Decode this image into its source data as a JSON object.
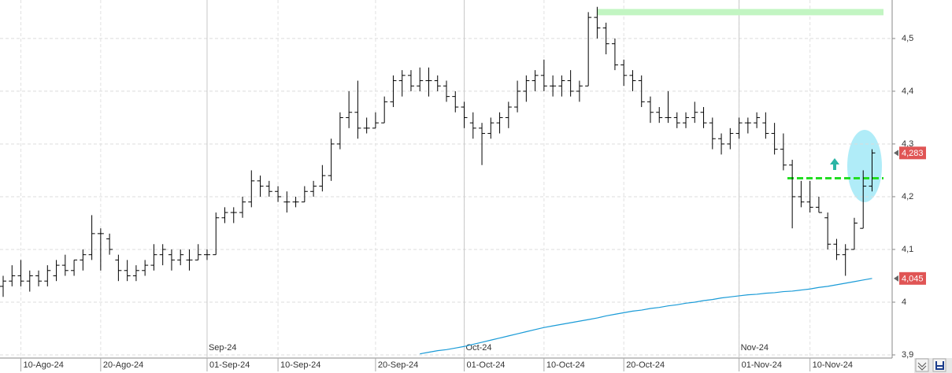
{
  "chart_data": {
    "type": "ohlc",
    "categories": [
      null,
      null,
      "10-Ago-24",
      null,
      null,
      null,
      null,
      null,
      null,
      null,
      null,
      "20-Ago-24",
      null,
      null,
      null,
      null,
      null,
      null,
      null,
      null,
      null,
      null,
      null,
      "01-Sep-24",
      null,
      null,
      null,
      null,
      null,
      null,
      null,
      "10-Sep-24",
      null,
      null,
      null,
      null,
      null,
      null,
      null,
      null,
      null,
      null,
      "20-Sep-24",
      null,
      null,
      null,
      null,
      null,
      null,
      null,
      null,
      null,
      "01-Oct-24",
      null,
      null,
      null,
      null,
      null,
      null,
      null,
      null,
      "10-Oct-24",
      null,
      null,
      null,
      null,
      null,
      null,
      null,
      null,
      "20-Oct-24",
      null,
      null,
      null,
      null,
      null,
      null,
      null,
      null,
      null,
      null,
      null,
      null,
      "01-Nov-24",
      null,
      null,
      null,
      null,
      null,
      null,
      null,
      "10-Nov-24",
      null,
      null,
      null,
      null,
      null,
      null,
      null
    ],
    "months": [
      null,
      null,
      null,
      null,
      null,
      null,
      null,
      null,
      null,
      null,
      null,
      null,
      null,
      null,
      null,
      null,
      null,
      null,
      null,
      null,
      null,
      null,
      null,
      "Sep-24",
      null,
      null,
      null,
      null,
      null,
      null,
      null,
      null,
      null,
      null,
      null,
      null,
      null,
      null,
      null,
      null,
      null,
      null,
      null,
      null,
      null,
      null,
      null,
      null,
      null,
      null,
      null,
      null,
      "Oct-24",
      null,
      null,
      null,
      null,
      null,
      null,
      null,
      null,
      null,
      null,
      null,
      null,
      null,
      null,
      null,
      null,
      null,
      null,
      null,
      null,
      null,
      null,
      null,
      null,
      null,
      null,
      null,
      null,
      null,
      null,
      "Nov-24",
      null,
      null,
      null,
      null,
      null,
      null,
      null,
      null,
      null,
      null,
      null,
      null,
      null,
      null,
      null
    ],
    "open": [
      4.03,
      4.04,
      4.05,
      4.04,
      4.05,
      4.04,
      4.05,
      4.07,
      4.06,
      4.08,
      4.09,
      4.13,
      4.12,
      4.08,
      4.06,
      4.05,
      4.06,
      4.07,
      4.09,
      4.09,
      4.08,
      4.08,
      4.08,
      4.09,
      4.09,
      4.16,
      4.17,
      4.17,
      4.19,
      4.23,
      4.22,
      4.21,
      4.19,
      4.19,
      4.19,
      4.21,
      4.22,
      4.24,
      4.3,
      4.35,
      4.36,
      4.33,
      4.33,
      4.34,
      4.38,
      4.42,
      4.43,
      4.41,
      4.42,
      4.42,
      4.41,
      4.39,
      4.37,
      4.34,
      4.33,
      4.32,
      4.34,
      4.35,
      4.37,
      4.4,
      4.42,
      4.43,
      4.41,
      4.41,
      4.42,
      4.4,
      4.41,
      4.54,
      4.52,
      4.49,
      4.45,
      4.43,
      4.42,
      4.38,
      4.36,
      4.35,
      4.35,
      4.34,
      4.35,
      4.36,
      4.34,
      4.31,
      4.3,
      4.32,
      4.34,
      4.34,
      4.34,
      4.32,
      4.29,
      4.26,
      4.2,
      4.19,
      4.18,
      4.16,
      4.11,
      4.09,
      4.1,
      4.14,
      4.22
    ],
    "high": [
      4.05,
      4.07,
      4.08,
      4.06,
      4.06,
      4.07,
      4.08,
      4.09,
      4.08,
      4.1,
      4.165,
      4.14,
      4.13,
      4.09,
      4.08,
      4.07,
      4.08,
      4.11,
      4.11,
      4.1,
      4.1,
      4.1,
      4.11,
      4.1,
      4.17,
      4.18,
      4.18,
      4.2,
      4.25,
      4.24,
      4.23,
      4.22,
      4.21,
      4.2,
      4.22,
      4.23,
      4.26,
      4.31,
      4.36,
      4.4,
      4.42,
      4.35,
      4.36,
      4.39,
      4.43,
      4.44,
      4.44,
      4.445,
      4.445,
      4.43,
      4.42,
      4.4,
      4.38,
      4.36,
      4.34,
      4.35,
      4.36,
      4.38,
      4.42,
      4.43,
      4.44,
      4.46,
      4.43,
      4.43,
      4.44,
      4.42,
      4.55,
      4.56,
      4.53,
      4.5,
      4.46,
      4.44,
      4.43,
      4.39,
      4.37,
      4.4,
      4.36,
      4.36,
      4.38,
      4.37,
      4.35,
      4.32,
      4.33,
      4.35,
      4.35,
      4.36,
      4.36,
      4.34,
      4.32,
      4.27,
      4.23,
      4.23,
      4.2,
      4.17,
      4.12,
      4.11,
      4.16,
      4.25,
      4.29
    ],
    "low": [
      4.01,
      4.03,
      4.03,
      4.02,
      4.03,
      4.03,
      4.04,
      4.05,
      4.05,
      4.06,
      4.08,
      4.06,
      4.09,
      4.04,
      4.04,
      4.04,
      4.05,
      4.06,
      4.07,
      4.06,
      4.07,
      4.06,
      4.08,
      4.08,
      4.09,
      4.15,
      4.15,
      4.16,
      4.18,
      4.2,
      4.2,
      4.19,
      4.17,
      4.18,
      4.19,
      4.2,
      4.21,
      4.23,
      4.29,
      4.33,
      4.31,
      4.32,
      4.33,
      4.34,
      4.37,
      4.39,
      4.4,
      4.4,
      4.39,
      4.4,
      4.38,
      4.36,
      4.33,
      4.31,
      4.26,
      4.31,
      4.32,
      4.33,
      4.36,
      4.38,
      4.4,
      4.4,
      4.39,
      4.39,
      4.39,
      4.38,
      4.41,
      4.5,
      4.47,
      4.44,
      4.41,
      4.4,
      4.37,
      4.34,
      4.34,
      4.34,
      4.33,
      4.33,
      4.34,
      4.33,
      4.29,
      4.28,
      4.29,
      4.31,
      4.32,
      4.33,
      4.31,
      4.28,
      4.25,
      4.14,
      4.18,
      4.17,
      4.17,
      4.1,
      4.08,
      4.05,
      4.1,
      4.14,
      4.21
    ],
    "close": [
      4.04,
      4.05,
      4.04,
      4.05,
      4.04,
      4.06,
      4.07,
      4.06,
      4.08,
      4.09,
      4.13,
      4.13,
      4.1,
      4.06,
      4.05,
      4.06,
      4.07,
      4.09,
      4.1,
      4.08,
      4.09,
      4.08,
      4.09,
      4.09,
      4.16,
      4.17,
      4.17,
      4.19,
      4.23,
      4.22,
      4.21,
      4.2,
      4.19,
      4.19,
      4.21,
      4.22,
      4.24,
      4.3,
      4.35,
      4.36,
      4.33,
      4.33,
      4.34,
      4.38,
      4.42,
      4.43,
      4.41,
      4.42,
      4.42,
      4.41,
      4.39,
      4.37,
      4.35,
      4.33,
      4.32,
      4.34,
      4.35,
      4.37,
      4.4,
      4.42,
      4.43,
      4.41,
      4.41,
      4.42,
      4.4,
      4.41,
      4.54,
      4.52,
      4.49,
      4.45,
      4.43,
      4.42,
      4.38,
      4.36,
      4.35,
      4.35,
      4.34,
      4.35,
      4.36,
      4.34,
      4.31,
      4.3,
      4.32,
      4.34,
      4.34,
      4.35,
      4.32,
      4.29,
      4.26,
      4.2,
      4.19,
      4.18,
      4.17,
      4.11,
      4.09,
      4.1,
      4.15,
      4.22,
      4.283
    ],
    "color": "#000000",
    "overlays": [
      {
        "color": "#1a9bd7",
        "values": [
          null,
          null,
          null,
          null,
          null,
          null,
          null,
          null,
          null,
          null,
          null,
          null,
          null,
          null,
          null,
          null,
          null,
          null,
          null,
          null,
          null,
          null,
          null,
          null,
          null,
          null,
          null,
          null,
          null,
          null,
          null,
          null,
          null,
          null,
          null,
          null,
          null,
          null,
          null,
          null,
          null,
          null,
          null,
          null,
          null,
          null,
          null,
          3.902,
          3.905,
          3.908,
          3.91,
          3.913,
          3.916,
          3.92,
          3.924,
          3.928,
          3.932,
          3.936,
          3.94,
          3.944,
          3.948,
          3.952,
          3.955,
          3.958,
          3.961,
          3.964,
          3.967,
          3.97,
          3.974,
          3.977,
          3.98,
          3.983,
          3.985,
          3.988,
          3.99,
          3.993,
          3.995,
          3.998,
          4.0,
          4.003,
          4.005,
          4.008,
          4.01,
          4.012,
          4.014,
          4.015,
          4.017,
          4.018,
          4.02,
          4.021,
          4.023,
          4.025,
          4.028,
          4.03,
          4.033,
          4.036,
          4.039,
          4.042,
          4.045
        ]
      }
    ],
    "levels": [
      {
        "value": 4.55,
        "color": "#c2f5c2"
      },
      {
        "value": 4.235,
        "color": "#22dd22"
      }
    ],
    "price_tags": [
      {
        "value": 4.283,
        "label": "4,283",
        "color": "#e05555"
      },
      {
        "value": 4.045,
        "label": "4,045",
        "color": "#e05555"
      }
    ],
    "ylim": [
      3.9,
      4.573
    ],
    "yticks": [
      {
        "value": 3.9,
        "label": "3,9"
      },
      4,
      {
        "value": 4.1,
        "label": "4,1"
      },
      {
        "value": 4.2,
        "label": "4,2"
      },
      {
        "value": 4.3,
        "label": "4,3"
      },
      {
        "value": 4.4,
        "label": "4,4"
      },
      {
        "value": 4.5,
        "label": "4,5"
      }
    ],
    "grid": true
  }
}
